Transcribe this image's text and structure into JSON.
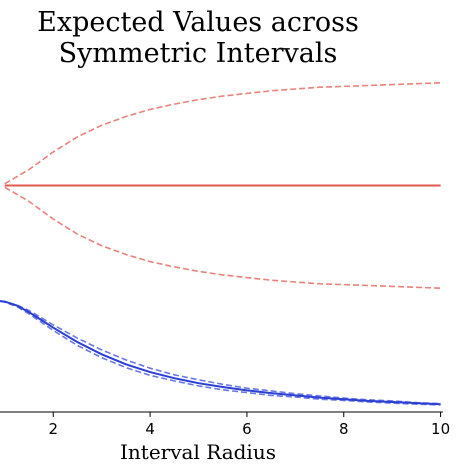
{
  "chart_data": {
    "type": "line",
    "title_lines": [
      "Expected Values across",
      "Symmetric Intervals"
    ],
    "xlabel": "Interval Radius",
    "ylabel": "",
    "xlim": [
      0.9,
      10.05
    ],
    "xticks": [
      2,
      4,
      6,
      8,
      10
    ],
    "grid": false,
    "panels": [
      {
        "name": "",
        "color": "#e0584e",
        "ylim": [
          -1.35,
          1.35
        ],
        "x": [
          1,
          1.5,
          2,
          2.5,
          3,
          3.5,
          4,
          4.5,
          5,
          5.5,
          6,
          6.5,
          7,
          7.5,
          8,
          8.5,
          9,
          9.5,
          10
        ],
        "series": [
          {
            "style": "solid",
            "values": [
              0,
              0,
              0,
              0,
              0,
              0,
              0,
              0,
              0,
              0,
              0,
              0,
              0,
              0,
              0,
              0,
              0,
              0,
              0
            ]
          },
          {
            "style": "dashed",
            "values": [
              0.02,
              0.18,
              0.38,
              0.55,
              0.68,
              0.78,
              0.86,
              0.92,
              0.97,
              1.01,
              1.04,
              1.07,
              1.09,
              1.11,
              1.12,
              1.13,
              1.14,
              1.15,
              1.16
            ]
          },
          {
            "style": "dashed",
            "values": [
              -0.02,
              -0.18,
              -0.38,
              -0.55,
              -0.68,
              -0.78,
              -0.86,
              -0.92,
              -0.97,
              -1.01,
              -1.04,
              -1.07,
              -1.09,
              -1.11,
              -1.12,
              -1.13,
              -1.14,
              -1.15,
              -1.16
            ]
          }
        ]
      },
      {
        "name": "",
        "color": "#2b3fd6",
        "ylim": [
          0,
          1.1
        ],
        "x": [
          0.9,
          1.0,
          1.25,
          1.5,
          1.75,
          2,
          2.5,
          3,
          3.5,
          4,
          4.5,
          5,
          5.5,
          6,
          6.5,
          7,
          7.5,
          8,
          8.5,
          9,
          9.5,
          10
        ],
        "series": [
          {
            "style": "solid",
            "values": [
              1.0,
              0.995,
              0.96,
              0.9,
              0.83,
              0.76,
              0.63,
              0.52,
              0.43,
              0.36,
              0.305,
              0.26,
              0.225,
              0.195,
              0.17,
              0.15,
              0.13,
              0.115,
              0.1,
              0.09,
              0.08,
              0.07
            ]
          },
          {
            "style": "dashed",
            "values": [
              1.0,
              0.995,
              0.965,
              0.915,
              0.85,
              0.785,
              0.665,
              0.56,
              0.47,
              0.395,
              0.335,
              0.29,
              0.25,
              0.215,
              0.19,
              0.165,
              0.145,
              0.125,
              0.11,
              0.1,
              0.085,
              0.075
            ]
          },
          {
            "style": "dashed",
            "values": [
              1.0,
              0.99,
              0.95,
              0.885,
              0.81,
              0.735,
              0.6,
              0.49,
              0.4,
              0.33,
              0.28,
              0.235,
              0.2,
              0.175,
              0.15,
              0.135,
              0.115,
              0.105,
              0.09,
              0.08,
              0.07,
              0.065
            ]
          }
        ]
      }
    ]
  }
}
